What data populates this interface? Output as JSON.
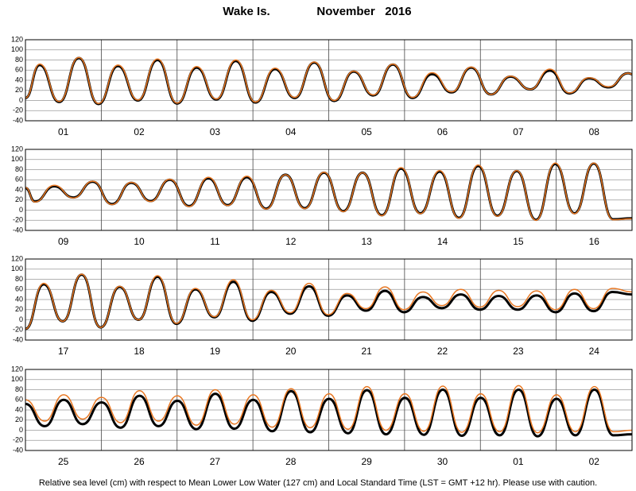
{
  "location": "Wake Is.",
  "title": "November   2016",
  "footnote": "Relative sea level (cm) with respect to Mean Lower Low Water (127 cm) and Local Standard Time (LST = GMT +12 hr). Please use with caution.",
  "chart_data": [
    {
      "type": "line",
      "categories": [
        "01",
        "02",
        "03",
        "04",
        "05",
        "06",
        "07",
        "08"
      ],
      "xlim": [
        0,
        192
      ],
      "ylim": [
        -40,
        120
      ],
      "yticks": [
        -40,
        -20,
        0,
        20,
        40,
        60,
        80,
        100,
        120
      ],
      "grid": true,
      "x": [
        0,
        4.5,
        10.7,
        16.9,
        23.1,
        29.3,
        35.6,
        41.8,
        48,
        54.2,
        60.4,
        66.6,
        72.8,
        79,
        85.2,
        91.4,
        97.7,
        103.9,
        110.1,
        116.3,
        122.5,
        128.7,
        134.9,
        141.1,
        147.3,
        153.5,
        159.8,
        166,
        172.2,
        178.4,
        184.6,
        190.8,
        192
      ],
      "series": [
        {
          "color": "#000000",
          "values": [
            5,
            70,
            -3,
            84,
            -7,
            68,
            0,
            80,
            -6,
            65,
            2,
            78,
            -4,
            62,
            5,
            75,
            -1,
            57,
            10,
            71,
            5,
            52,
            16,
            65,
            12,
            47,
            22,
            59,
            14,
            44,
            26,
            54,
            52
          ]
        },
        {
          "color": "#e87722",
          "values": [
            5,
            72,
            -2,
            85,
            -6,
            70,
            1,
            82,
            -5,
            67,
            3,
            80,
            -3,
            64,
            6,
            76,
            0,
            58,
            11,
            72,
            6,
            55,
            17,
            66,
            12,
            48,
            22,
            62,
            15,
            45,
            27,
            54,
            52
          ]
        }
      ]
    },
    {
      "type": "line",
      "categories": [
        "09",
        "10",
        "11",
        "12",
        "13",
        "14",
        "15",
        "16"
      ],
      "xlim": [
        0,
        192
      ],
      "ylim": [
        -40,
        120
      ],
      "yticks": [
        -40,
        -20,
        0,
        20,
        40,
        60,
        80,
        100,
        120
      ],
      "grid": true,
      "x": [
        0,
        3,
        9.1,
        15.2,
        21.3,
        27.4,
        33.5,
        39.6,
        45.7,
        51.8,
        57.9,
        64,
        70.1,
        76.2,
        82.3,
        88.4,
        94.5,
        100.6,
        106.7,
        112.8,
        118.9,
        125,
        131.1,
        137.2,
        143.3,
        149.4,
        155.5,
        161.6,
        167.7,
        173.8,
        179.9,
        186,
        192
      ],
      "series": [
        {
          "color": "#000000",
          "values": [
            44,
            17,
            47,
            25,
            56,
            12,
            54,
            18,
            60,
            8,
            63,
            10,
            65,
            3,
            70,
            4,
            74,
            -2,
            74,
            -10,
            82,
            -6,
            76,
            -15,
            87,
            -11,
            77,
            -19,
            91,
            -6,
            92,
            -18,
            -16
          ]
        },
        {
          "color": "#e87722",
          "values": [
            45,
            16,
            49,
            24,
            57,
            11,
            55,
            17,
            61,
            7,
            65,
            9,
            67,
            2,
            70,
            3,
            75,
            -3,
            74,
            -11,
            84,
            -7,
            78,
            -16,
            89,
            -12,
            78,
            -20,
            93,
            -7,
            93,
            -19,
            -17
          ]
        }
      ]
    },
    {
      "type": "line",
      "categories": [
        "17",
        "18",
        "19",
        "20",
        "21",
        "22",
        "23",
        "24"
      ],
      "xlim": [
        0,
        192
      ],
      "ylim": [
        -40,
        120
      ],
      "yticks": [
        -40,
        -20,
        0,
        20,
        40,
        60,
        80,
        100,
        120
      ],
      "grid": true,
      "x": [
        0,
        5.8,
        11.8,
        17.8,
        23.8,
        29.8,
        35.8,
        41.8,
        47.8,
        53.8,
        59.8,
        65.8,
        71.8,
        77.8,
        83.8,
        89.8,
        95.8,
        101.8,
        107.8,
        113.8,
        119.8,
        125.8,
        131.8,
        137.8,
        143.8,
        149.8,
        155.8,
        161.8,
        167.8,
        173.8,
        179.8,
        185.8,
        192
      ],
      "series": [
        {
          "color": "#000000",
          "values": [
            -18,
            70,
            -3,
            89,
            -15,
            65,
            0,
            85,
            -8,
            60,
            5,
            75,
            -2,
            55,
            12,
            66,
            8,
            48,
            18,
            57,
            15,
            45,
            23,
            50,
            20,
            47,
            20,
            48,
            15,
            52,
            17,
            55,
            50
          ]
        },
        {
          "color": "#e87722",
          "values": [
            -18,
            72,
            -3,
            90,
            -15,
            66,
            0,
            87,
            -7,
            62,
            6,
            79,
            0,
            58,
            14,
            72,
            10,
            52,
            22,
            65,
            20,
            55,
            28,
            60,
            25,
            58,
            26,
            57,
            20,
            60,
            22,
            62,
            55
          ]
        }
      ]
    },
    {
      "type": "line",
      "categories": [
        "25",
        "26",
        "27",
        "28",
        "29",
        "30",
        "01",
        "02"
      ],
      "xlim": [
        0,
        192
      ],
      "ylim": [
        -40,
        120
      ],
      "yticks": [
        -40,
        -20,
        0,
        20,
        40,
        60,
        80,
        100,
        120
      ],
      "grid": true,
      "x": [
        0,
        6.1,
        12.1,
        18.1,
        24.1,
        30.1,
        36.1,
        42.1,
        48.1,
        54.1,
        60.1,
        66.1,
        72.1,
        78.1,
        84.1,
        90.1,
        96.1,
        102.1,
        108.1,
        114.1,
        120.1,
        126.1,
        132.1,
        138.1,
        144.1,
        150.1,
        156.1,
        162.1,
        168.1,
        174.1,
        180.1,
        186.1,
        192
      ],
      "series": [
        {
          "color": "#000000",
          "values": [
            52,
            8,
            60,
            12,
            55,
            5,
            68,
            8,
            58,
            2,
            72,
            3,
            60,
            -2,
            77,
            -4,
            62,
            -6,
            79,
            -8,
            64,
            -9,
            80,
            -11,
            64,
            -10,
            80,
            -12,
            62,
            -10,
            80,
            -10,
            -8
          ]
        },
        {
          "color": "#e87722",
          "values": [
            60,
            18,
            70,
            22,
            65,
            15,
            78,
            18,
            68,
            10,
            80,
            12,
            70,
            6,
            82,
            5,
            72,
            2,
            86,
            0,
            72,
            -2,
            87,
            -4,
            72,
            -3,
            88,
            -5,
            70,
            -3,
            86,
            -3,
            0
          ]
        }
      ]
    }
  ]
}
